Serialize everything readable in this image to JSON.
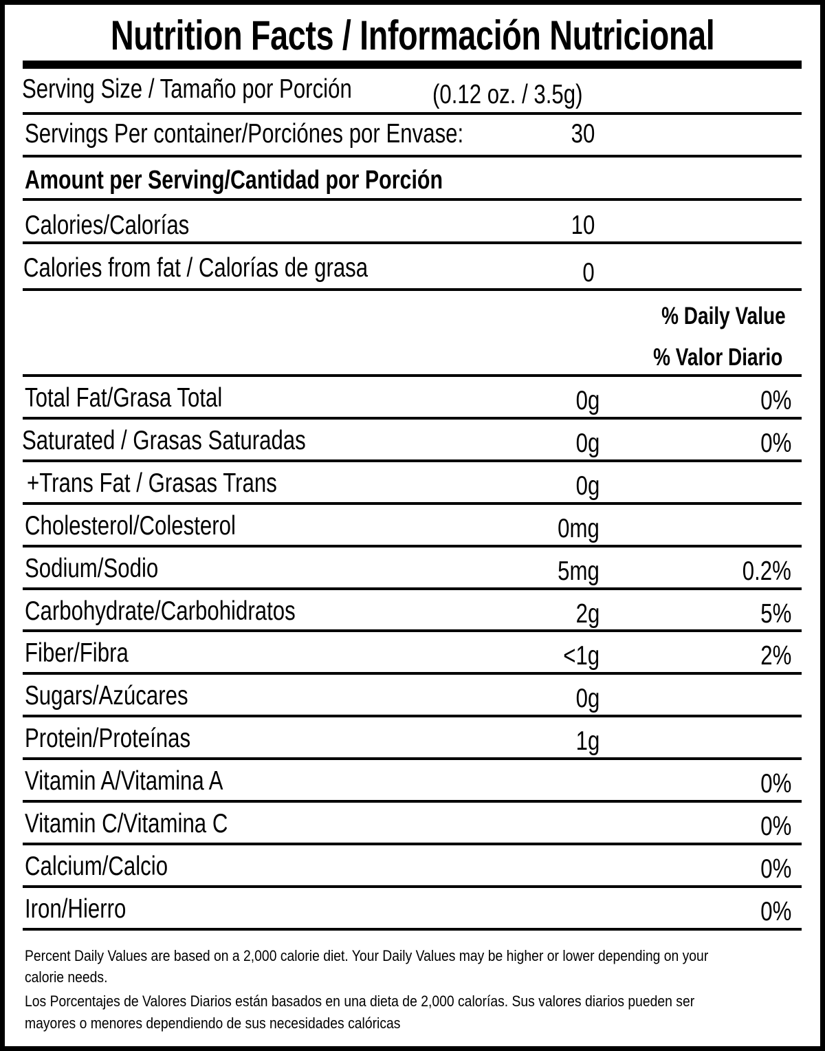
{
  "title": "Nutrition Facts / Información Nutricional",
  "serving_size": {
    "label": "Serving Size / Tamaño por Porción",
    "value": "(0.12 oz. / 3.5g)"
  },
  "servings_per_container": {
    "label": "Servings Per container/Porciónes por Envase:",
    "value": "30"
  },
  "amount_header": "Amount per Serving/Cantidad por Porción",
  "calories": {
    "label": "Calories/Calorías",
    "value": "10"
  },
  "calories_from_fat": {
    "label": "Calories from fat / Calorías de grasa",
    "value": "0"
  },
  "daily_value_header": {
    "en": "% Daily Value",
    "es": "% Valor Diario"
  },
  "nutrients": [
    {
      "label": "Total Fat/Grasa Total",
      "amount": "0g",
      "dv": "0%"
    },
    {
      "label": "Saturated / Grasas Saturadas",
      "amount": "0g",
      "dv": "0%"
    },
    {
      "label": "+Trans Fat / Grasas Trans",
      "amount": "0g",
      "dv": ""
    },
    {
      "label": "Cholesterol/Colesterol",
      "amount": "0mg",
      "dv": ""
    },
    {
      "label": "Sodium/Sodio",
      "amount": "5mg",
      "dv": "0.2%"
    },
    {
      "label": "Carbohydrate/Carbohidratos",
      "amount": "2g",
      "dv": "5%"
    },
    {
      "label": "Fiber/Fibra",
      "amount": "<1g",
      "dv": "2%"
    },
    {
      "label": "Sugars/Azúcares",
      "amount": "0g",
      "dv": ""
    },
    {
      "label": "Protein/Proteínas",
      "amount": "1g",
      "dv": ""
    },
    {
      "label": "Vitamin A/Vitamina A",
      "amount": "",
      "dv": "0%"
    },
    {
      "label": "Vitamin C/Vitamina C",
      "amount": "",
      "dv": "0%"
    },
    {
      "label": "Calcium/Calcio",
      "amount": "",
      "dv": "0%"
    },
    {
      "label": "Iron/Hierro",
      "amount": "",
      "dv": "0%"
    }
  ],
  "footnote": {
    "en_line1": "Percent Daily Values are based on a 2,000 calorie diet. Your Daily Values may be higher or lower depending on your",
    "en_line2": "calorie needs.",
    "es_line1": "Los Porcentajes de Valores Diarios están basados en una dieta de 2,000 calorías. Sus valores diarios pueden ser",
    "es_line2": "mayores o menores dependiendo de sus necesidades calóricas"
  }
}
